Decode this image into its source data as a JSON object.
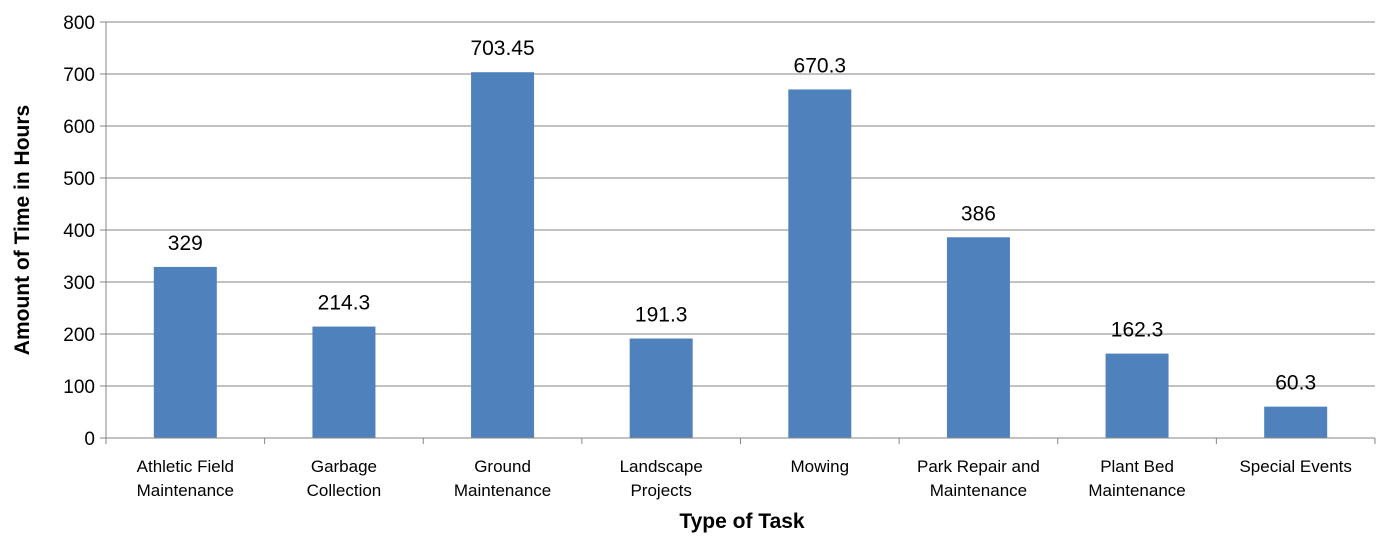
{
  "chart_data": {
    "type": "bar",
    "title": "",
    "xlabel": "Type of Task",
    "ylabel": "Amount of Time in Hours",
    "ylim": [
      0,
      800
    ],
    "yticks": [
      0,
      100,
      200,
      300,
      400,
      500,
      600,
      700,
      800
    ],
    "grid": true,
    "categories": [
      [
        "Athletic Field",
        "Maintenance"
      ],
      [
        "Garbage",
        "Collection"
      ],
      [
        "Ground",
        "Maintenance"
      ],
      [
        "Landscape",
        "Projects"
      ],
      [
        "Mowing"
      ],
      [
        "Park Repair and",
        "Maintenance"
      ],
      [
        "Plant Bed",
        "Maintenance"
      ],
      [
        "Special Events"
      ]
    ],
    "values": [
      329,
      214.3,
      703.45,
      191.3,
      670.3,
      386,
      162.3,
      60.3
    ],
    "data_labels": [
      "329",
      "214.3",
      "703.45",
      "191.3",
      "670.3",
      "386",
      "162.3",
      "60.3"
    ],
    "bar_color": "#4F81BD",
    "grid_color": "#868686"
  }
}
